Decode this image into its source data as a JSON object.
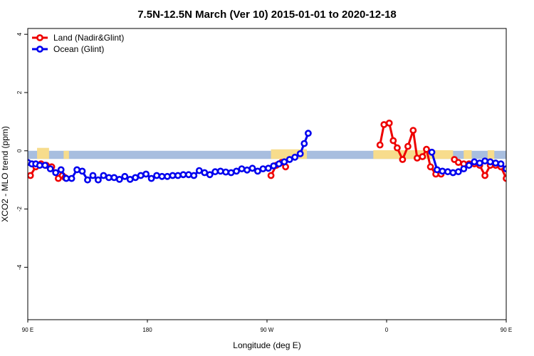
{
  "chart_data": {
    "type": "line",
    "title": "7.5N-12.5N March (Ver 10)   2015-01-01 to 2020-12-18",
    "xlabel": "Longitude (deg E)",
    "ylabel": "XCO2 - MLO trend (ppm)",
    "xlim": [
      90,
      450
    ],
    "ylim": [
      -5.8,
      4.2
    ],
    "x_ticks": [
      {
        "value": 90,
        "label": "90 E"
      },
      {
        "value": 180,
        "label": "180"
      },
      {
        "value": 270,
        "label": "90 W"
      },
      {
        "value": 360,
        "label": "0"
      },
      {
        "value": 450,
        "label": "90 E"
      },
      {
        "value": 540,
        "label": "180"
      }
    ],
    "y_ticks": [
      {
        "value": 4,
        "label": "4"
      },
      {
        "value": 2,
        "label": "2"
      },
      {
        "value": 0,
        "label": "0"
      },
      {
        "value": -2,
        "label": "-2"
      },
      {
        "value": -4,
        "label": "-4"
      }
    ],
    "legend_position": "top-left",
    "background_band": {
      "ymin": -0.28,
      "ymax": 0.0,
      "color": "#a8bedf"
    },
    "land_mask": {
      "color": "#f7dc8c",
      "segments": [
        {
          "xmin": 97,
          "xmax": 106,
          "ymin": -0.28,
          "ymax": 0.1
        },
        {
          "xmin": 117,
          "xmax": 121,
          "ymin": -0.28,
          "ymax": 0.0
        },
        {
          "xmin": 273,
          "xmax": 300,
          "ymin": -0.28,
          "ymax": 0.05
        },
        {
          "xmin": 350,
          "xmax": 410,
          "ymin": -0.28,
          "ymax": 0.02
        },
        {
          "xmin": 418,
          "xmax": 424,
          "ymin": -0.28,
          "ymax": 0.02
        },
        {
          "xmin": 436,
          "xmax": 441,
          "ymin": -0.28,
          "ymax": 0.02
        }
      ]
    },
    "series": [
      {
        "name": "Land (Nadir&Glint)",
        "color": "#ee0000",
        "segments": [
          [
            [
              92,
              -0.85
            ],
            [
              96,
              -0.55
            ],
            [
              100,
              -0.45
            ],
            [
              104,
              -0.5
            ],
            [
              108,
              -0.55
            ],
            [
              113,
              -0.95
            ],
            [
              116,
              -0.85
            ],
            [
              118,
              -0.92
            ]
          ],
          [
            [
              273,
              -0.85
            ],
            [
              277,
              -0.5
            ],
            [
              281,
              -0.4
            ],
            [
              284,
              -0.55
            ]
          ],
          [
            [
              355,
              0.2
            ],
            [
              358,
              0.9
            ],
            [
              362,
              0.95
            ],
            [
              365,
              0.35
            ],
            [
              368,
              0.1
            ],
            [
              372,
              -0.3
            ],
            [
              376,
              0.15
            ],
            [
              380,
              0.7
            ],
            [
              383,
              -0.25
            ],
            [
              387,
              -0.2
            ],
            [
              390,
              0.05
            ],
            [
              393,
              -0.55
            ],
            [
              397,
              -0.8
            ],
            [
              401,
              -0.8
            ]
          ],
          [
            [
              411,
              -0.3
            ],
            [
              414,
              -0.4
            ],
            [
              418,
              -0.45
            ],
            [
              422,
              -0.45
            ],
            [
              426,
              -0.45
            ],
            [
              430,
              -0.5
            ],
            [
              434,
              -0.85
            ],
            [
              438,
              -0.5
            ],
            [
              442,
              -0.5
            ],
            [
              446,
              -0.55
            ],
            [
              450,
              -0.95
            ],
            [
              453,
              -0.85
            ],
            [
              456,
              -0.95
            ]
          ]
        ]
      },
      {
        "name": "Ocean (Glint)",
        "color": "#0000ee",
        "segments": [
          [
            [
              90,
              -0.4
            ],
            [
              93,
              -0.45
            ],
            [
              96,
              -0.45
            ],
            [
              99,
              -0.5
            ],
            [
              103,
              -0.5
            ],
            [
              107,
              -0.62
            ],
            [
              111,
              -0.75
            ],
            [
              115,
              -0.65
            ],
            [
              119,
              -0.95
            ],
            [
              123,
              -0.95
            ],
            [
              127,
              -0.65
            ],
            [
              131,
              -0.7
            ],
            [
              135,
              -1.0
            ],
            [
              139,
              -0.85
            ],
            [
              143,
              -1.0
            ],
            [
              147,
              -0.85
            ],
            [
              151,
              -0.92
            ],
            [
              155,
              -0.92
            ],
            [
              159,
              -0.98
            ],
            [
              163,
              -0.88
            ],
            [
              167,
              -0.98
            ],
            [
              171,
              -0.92
            ],
            [
              175,
              -0.85
            ],
            [
              179,
              -0.8
            ],
            [
              183,
              -0.95
            ],
            [
              187,
              -0.85
            ],
            [
              191,
              -0.88
            ],
            [
              195,
              -0.88
            ],
            [
              199,
              -0.85
            ],
            [
              203,
              -0.85
            ],
            [
              207,
              -0.82
            ],
            [
              211,
              -0.82
            ],
            [
              215,
              -0.85
            ],
            [
              219,
              -0.68
            ],
            [
              223,
              -0.75
            ],
            [
              227,
              -0.82
            ],
            [
              231,
              -0.72
            ],
            [
              235,
              -0.7
            ],
            [
              239,
              -0.73
            ],
            [
              243,
              -0.75
            ],
            [
              247,
              -0.7
            ],
            [
              251,
              -0.62
            ],
            [
              255,
              -0.66
            ],
            [
              259,
              -0.6
            ],
            [
              263,
              -0.7
            ],
            [
              267,
              -0.62
            ],
            [
              271,
              -0.6
            ],
            [
              275,
              -0.52
            ],
            [
              279,
              -0.45
            ],
            [
              283,
              -0.38
            ],
            [
              287,
              -0.3
            ],
            [
              291,
              -0.22
            ],
            [
              295,
              -0.1
            ],
            [
              298,
              0.25
            ],
            [
              301,
              0.6
            ]
          ],
          [
            [
              394,
              -0.05
            ],
            [
              398,
              -0.65
            ],
            [
              402,
              -0.7
            ],
            [
              406,
              -0.72
            ],
            [
              410,
              -0.75
            ],
            [
              414,
              -0.72
            ],
            [
              418,
              -0.62
            ],
            [
              422,
              -0.5
            ],
            [
              426,
              -0.38
            ],
            [
              430,
              -0.42
            ],
            [
              434,
              -0.35
            ],
            [
              438,
              -0.38
            ],
            [
              442,
              -0.42
            ],
            [
              446,
              -0.45
            ],
            [
              450,
              -0.62
            ],
            [
              454,
              -0.7
            ],
            [
              458,
              -0.92
            ],
            [
              462,
              -0.9
            ],
            [
              466,
              -0.7
            ],
            [
              470,
              -0.72
            ],
            [
              474,
              -1.0
            ],
            [
              478,
              -0.85
            ],
            [
              482,
              -1.0
            ],
            [
              486,
              -0.85
            ],
            [
              490,
              -0.88
            ],
            [
              494,
              -0.9
            ],
            [
              498,
              -0.98
            ]
          ]
        ]
      }
    ]
  }
}
